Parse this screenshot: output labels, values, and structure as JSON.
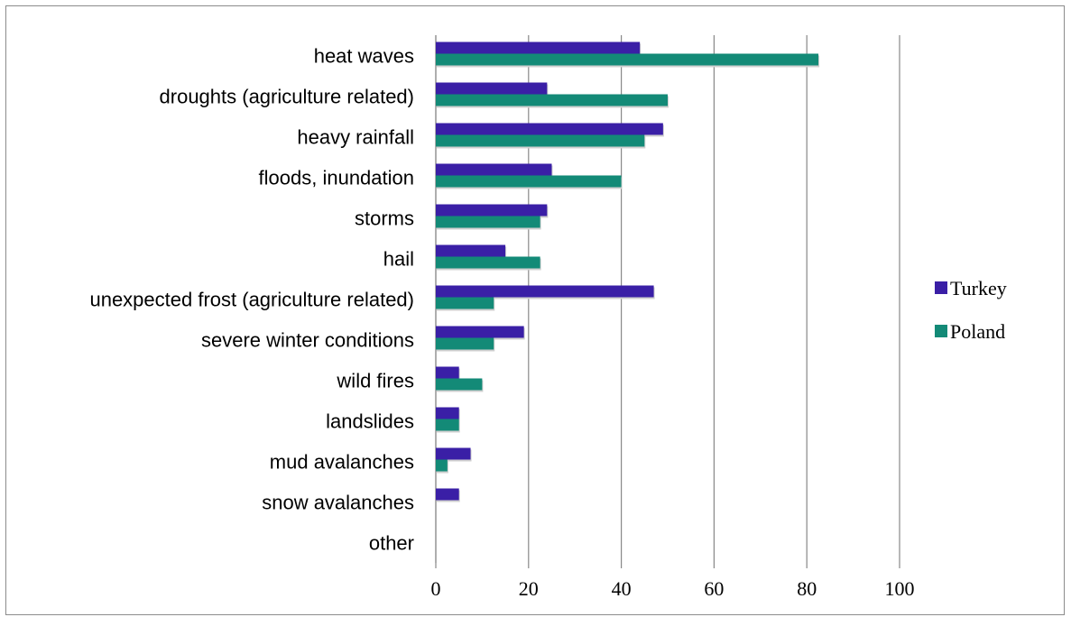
{
  "chart_data": {
    "type": "bar",
    "orientation": "horizontal",
    "categories": [
      "heat waves",
      "droughts (agriculture related)",
      "heavy rainfall",
      "floods, inundation",
      "storms",
      "hail",
      "unexpected frost (agriculture related)",
      "severe winter conditions",
      "wild fires",
      "landslides",
      "mud avalanches",
      "snow avalanches",
      "other"
    ],
    "series": [
      {
        "name": "Turkey",
        "color": "#3a1fa6",
        "values": [
          44,
          24,
          49,
          25,
          24,
          15,
          47,
          19,
          5,
          5,
          7.5,
          5,
          0
        ]
      },
      {
        "name": "Poland",
        "color": "#138a77",
        "values": [
          82.5,
          50,
          45,
          40,
          22.5,
          22.5,
          12.5,
          12.5,
          10,
          5,
          2.5,
          0,
          0
        ]
      }
    ],
    "xticks": [
      "0",
      "20",
      "40",
      "60",
      "80",
      "100"
    ],
    "xlim": [
      0,
      100
    ],
    "grid": true,
    "legend": "right",
    "title": "",
    "xlabel": "",
    "ylabel": ""
  }
}
